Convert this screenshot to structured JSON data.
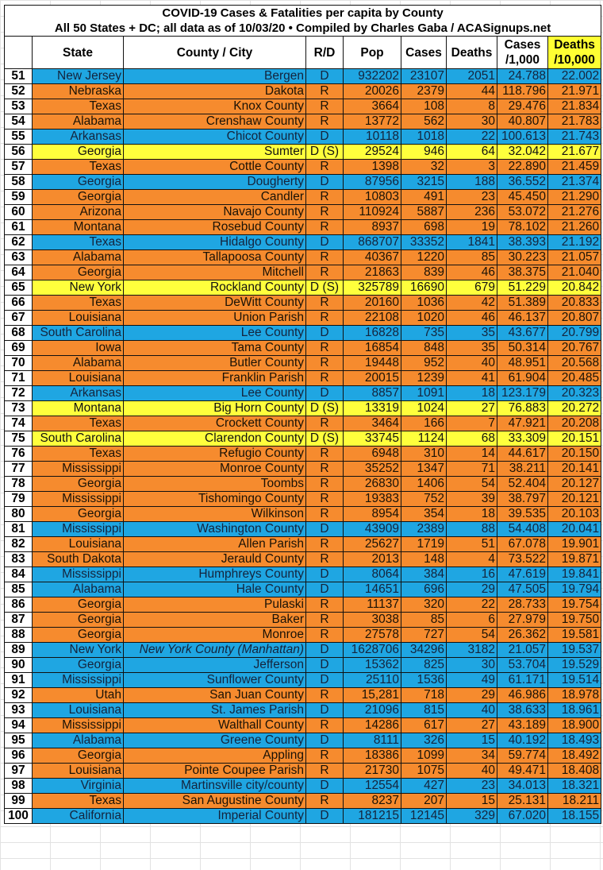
{
  "title": "COVID-19 Cases & Fatalities per capita by County",
  "subtitle": "All 50 States + DC; all data as of 10/03/20  • Compiled by Charles Gaba / ACASignups.net",
  "columns": {
    "num": "",
    "state": "State",
    "county": "County / City",
    "rd": "R/D",
    "pop": "Pop",
    "cases": "Cases",
    "deaths": "Deaths",
    "cases_per_1000_a": "Cases",
    "cases_per_1000_b": "/1,000",
    "deaths_per_10000_a": "Deaths",
    "deaths_per_10000_b": "/10,000"
  },
  "colors": {
    "D": "#1fa6e2",
    "R": "#f68b2e",
    "D (S)": "#ffff3c",
    "highlight_header": "#ffff33"
  },
  "rows": [
    [
      "51",
      "New Jersey",
      "Bergen",
      "D",
      "932202",
      "23107",
      "2051",
      "24.788",
      "22.002"
    ],
    [
      "52",
      "Nebraska",
      "Dakota",
      "R",
      "20026",
      "2379",
      "44",
      "118.796",
      "21.971"
    ],
    [
      "53",
      "Texas",
      "Knox County",
      "R",
      "3664",
      "108",
      "8",
      "29.476",
      "21.834"
    ],
    [
      "54",
      "Alabama",
      "Crenshaw County",
      "R",
      "13772",
      "562",
      "30",
      "40.807",
      "21.783"
    ],
    [
      "55",
      "Arkansas",
      "Chicot County",
      "D",
      "10118",
      "1018",
      "22",
      "100.613",
      "21.743"
    ],
    [
      "56",
      "Georgia",
      "Sumter",
      "D (S)",
      "29524",
      "946",
      "64",
      "32.042",
      "21.677"
    ],
    [
      "57",
      "Texas",
      "Cottle County",
      "R",
      "1398",
      "32",
      "3",
      "22.890",
      "21.459"
    ],
    [
      "58",
      "Georgia",
      "Dougherty",
      "D",
      "87956",
      "3215",
      "188",
      "36.552",
      "21.374"
    ],
    [
      "59",
      "Georgia",
      "Candler",
      "R",
      "10803",
      "491",
      "23",
      "45.450",
      "21.290"
    ],
    [
      "60",
      "Arizona",
      "Navajo County",
      "R",
      "110924",
      "5887",
      "236",
      "53.072",
      "21.276"
    ],
    [
      "61",
      "Montana",
      "Rosebud County",
      "R",
      "8937",
      "698",
      "19",
      "78.102",
      "21.260"
    ],
    [
      "62",
      "Texas",
      "Hidalgo County",
      "D",
      "868707",
      "33352",
      "1841",
      "38.393",
      "21.192"
    ],
    [
      "63",
      "Alabama",
      "Tallapoosa County",
      "R",
      "40367",
      "1220",
      "85",
      "30.223",
      "21.057"
    ],
    [
      "64",
      "Georgia",
      "Mitchell",
      "R",
      "21863",
      "839",
      "46",
      "38.375",
      "21.040"
    ],
    [
      "65",
      "New York",
      "Rockland County",
      "D (S)",
      "325789",
      "16690",
      "679",
      "51.229",
      "20.842"
    ],
    [
      "66",
      "Texas",
      "DeWitt County",
      "R",
      "20160",
      "1036",
      "42",
      "51.389",
      "20.833"
    ],
    [
      "67",
      "Louisiana",
      "Union Parish",
      "R",
      "22108",
      "1020",
      "46",
      "46.137",
      "20.807"
    ],
    [
      "68",
      "South Carolina",
      "Lee County",
      "D",
      "16828",
      "735",
      "35",
      "43.677",
      "20.799"
    ],
    [
      "69",
      "Iowa",
      "Tama County",
      "R",
      "16854",
      "848",
      "35",
      "50.314",
      "20.767"
    ],
    [
      "70",
      "Alabama",
      "Butler County",
      "R",
      "19448",
      "952",
      "40",
      "48.951",
      "20.568"
    ],
    [
      "71",
      "Louisiana",
      "Franklin Parish",
      "R",
      "20015",
      "1239",
      "41",
      "61.904",
      "20.485"
    ],
    [
      "72",
      "Arkansas",
      "Lee County",
      "D",
      "8857",
      "1091",
      "18",
      "123.179",
      "20.323"
    ],
    [
      "73",
      "Montana",
      "Big Horn County",
      "D (S)",
      "13319",
      "1024",
      "27",
      "76.883",
      "20.272"
    ],
    [
      "74",
      "Texas",
      "Crockett County",
      "R",
      "3464",
      "166",
      "7",
      "47.921",
      "20.208"
    ],
    [
      "75",
      "South Carolina",
      "Clarendon County",
      "D (S)",
      "33745",
      "1124",
      "68",
      "33.309",
      "20.151"
    ],
    [
      "76",
      "Texas",
      "Refugio County",
      "R",
      "6948",
      "310",
      "14",
      "44.617",
      "20.150"
    ],
    [
      "77",
      "Mississippi",
      "Monroe County",
      "R",
      "35252",
      "1347",
      "71",
      "38.211",
      "20.141"
    ],
    [
      "78",
      "Georgia",
      "Toombs",
      "R",
      "26830",
      "1406",
      "54",
      "52.404",
      "20.127"
    ],
    [
      "79",
      "Mississippi",
      "Tishomingo County",
      "R",
      "19383",
      "752",
      "39",
      "38.797",
      "20.121"
    ],
    [
      "80",
      "Georgia",
      "Wilkinson",
      "R",
      "8954",
      "354",
      "18",
      "39.535",
      "20.103"
    ],
    [
      "81",
      "Mississippi",
      "Washington County",
      "D",
      "43909",
      "2389",
      "88",
      "54.408",
      "20.041"
    ],
    [
      "82",
      "Louisiana",
      "Allen Parish",
      "R",
      "25627",
      "1719",
      "51",
      "67.078",
      "19.901"
    ],
    [
      "83",
      "South Dakota",
      "Jerauld County",
      "R",
      "2013",
      "148",
      "4",
      "73.522",
      "19.871"
    ],
    [
      "84",
      "Mississippi",
      "Humphreys County",
      "D",
      "8064",
      "384",
      "16",
      "47.619",
      "19.841"
    ],
    [
      "85",
      "Alabama",
      "Hale County",
      "D",
      "14651",
      "696",
      "29",
      "47.505",
      "19.794"
    ],
    [
      "86",
      "Georgia",
      "Pulaski",
      "R",
      "11137",
      "320",
      "22",
      "28.733",
      "19.754"
    ],
    [
      "87",
      "Georgia",
      "Baker",
      "R",
      "3038",
      "85",
      "6",
      "27.979",
      "19.750"
    ],
    [
      "88",
      "Georgia",
      "Monroe",
      "R",
      "27578",
      "727",
      "54",
      "26.362",
      "19.581"
    ],
    [
      "89",
      "New York",
      "New York County (Manhattan)",
      "D",
      "1628706",
      "34296",
      "3182",
      "21.057",
      "19.537"
    ],
    [
      "90",
      "Georgia",
      "Jefferson",
      "D",
      "15362",
      "825",
      "30",
      "53.704",
      "19.529"
    ],
    [
      "91",
      "Mississippi",
      "Sunflower County",
      "D",
      "25110",
      "1536",
      "49",
      "61.171",
      "19.514"
    ],
    [
      "92",
      "Utah",
      "San Juan County",
      "R",
      "15,281",
      "718",
      "29",
      "46.986",
      "18.978"
    ],
    [
      "93",
      "Louisiana",
      "St. James Parish",
      "D",
      "21096",
      "815",
      "40",
      "38.633",
      "18.961"
    ],
    [
      "94",
      "Mississippi",
      "Walthall County",
      "R",
      "14286",
      "617",
      "27",
      "43.189",
      "18.900"
    ],
    [
      "95",
      "Alabama",
      "Greene County",
      "D",
      "8111",
      "326",
      "15",
      "40.192",
      "18.493"
    ],
    [
      "96",
      "Georgia",
      "Appling",
      "R",
      "18386",
      "1099",
      "34",
      "59.774",
      "18.492"
    ],
    [
      "97",
      "Louisiana",
      "Pointe Coupee Parish",
      "R",
      "21730",
      "1075",
      "40",
      "49.471",
      "18.408"
    ],
    [
      "98",
      "Virginia",
      "Martinsville city/county",
      "D",
      "12554",
      "427",
      "23",
      "34.013",
      "18.321"
    ],
    [
      "99",
      "Texas",
      "San Augustine County",
      "R",
      "8237",
      "207",
      "15",
      "25.131",
      "18.211"
    ],
    [
      "100",
      "California",
      "Imperial County",
      "D",
      "181215",
      "12145",
      "329",
      "67.020",
      "18.155"
    ]
  ],
  "italic_county_rows": [
    "89"
  ]
}
